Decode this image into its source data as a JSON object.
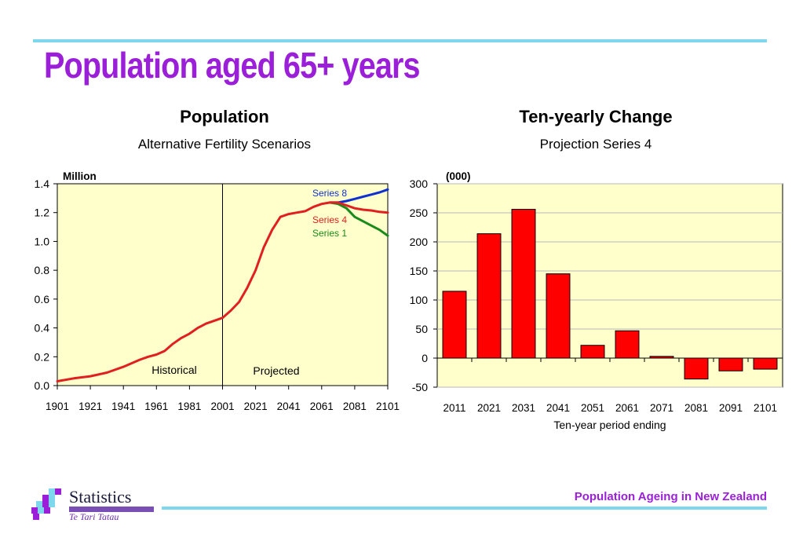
{
  "slide": {
    "title": "Population aged 65+ years",
    "footer": "Population Ageing in New Zealand",
    "logo": {
      "name": "Statistics",
      "maori": "Te Tari Tatau",
      "icon": "stats-nz-logo-icon"
    },
    "colors": {
      "title": "#9b1fd8",
      "rule": "#7fd7ee",
      "plot_bg": "#ffffcc",
      "bar": "#ff0000"
    }
  },
  "chart_data": [
    {
      "type": "line",
      "title": "Population",
      "subtitle": "Alternative Fertility Scenarios",
      "ylabel": "Million",
      "ylim": [
        0,
        1.4
      ],
      "xlim": [
        1901,
        2101
      ],
      "yticks": [
        "0.0",
        "0.2",
        "0.4",
        "0.6",
        "0.8",
        "1.0",
        "1.2",
        "1.4"
      ],
      "xticks": [
        "1901",
        "1921",
        "1941",
        "1961",
        "1981",
        "2001",
        "2021",
        "2041",
        "2061",
        "2081",
        "2101"
      ],
      "annotations": {
        "historical": "Historical",
        "projected": "Projected",
        "divider_year": 2001
      },
      "series": [
        {
          "name": "Series 4",
          "color": "#e02020",
          "x": [
            1901,
            1911,
            1921,
            1931,
            1941,
            1951,
            1956,
            1961,
            1966,
            1971,
            1976,
            1981,
            1986,
            1991,
            1996,
            2001,
            2006,
            2011,
            2016,
            2021,
            2026,
            2031,
            2036,
            2041,
            2046,
            2051,
            2056,
            2061,
            2066,
            2071,
            2076,
            2081,
            2086,
            2091,
            2096,
            2101
          ],
          "values": [
            0.03,
            0.05,
            0.065,
            0.09,
            0.13,
            0.18,
            0.2,
            0.215,
            0.24,
            0.29,
            0.33,
            0.36,
            0.4,
            0.43,
            0.45,
            0.47,
            0.52,
            0.58,
            0.68,
            0.8,
            0.96,
            1.08,
            1.17,
            1.19,
            1.2,
            1.21,
            1.24,
            1.26,
            1.27,
            1.27,
            1.25,
            1.23,
            1.22,
            1.215,
            1.205,
            1.2
          ]
        },
        {
          "name": "Series 8",
          "color": "#1030d0",
          "x": [
            2066,
            2071,
            2076,
            2081,
            2086,
            2091,
            2096,
            2101
          ],
          "values": [
            1.27,
            1.27,
            1.28,
            1.295,
            1.31,
            1.325,
            1.34,
            1.36
          ]
        },
        {
          "name": "Series 1",
          "color": "#1a8a1a",
          "x": [
            2066,
            2071,
            2076,
            2081,
            2086,
            2091,
            2096,
            2101
          ],
          "values": [
            1.27,
            1.26,
            1.23,
            1.17,
            1.14,
            1.11,
            1.08,
            1.04
          ]
        }
      ],
      "legend_labels": [
        "Series 8",
        "Series 4",
        "Series 1"
      ],
      "grid": false
    },
    {
      "type": "bar",
      "title": "Ten-yearly Change",
      "subtitle": "Projection Series 4",
      "ylabel": "(000)",
      "xlabel": "Ten-year period ending",
      "ylim": [
        -50,
        300
      ],
      "yticks": [
        "-50",
        "0",
        "50",
        "100",
        "150",
        "200",
        "250",
        "300"
      ],
      "categories": [
        "2011",
        "2021",
        "2031",
        "2041",
        "2051",
        "2061",
        "2071",
        "2081",
        "2091",
        "2101"
      ],
      "values": [
        115,
        214,
        256,
        145,
        22,
        47,
        3,
        -36,
        -22,
        -19
      ],
      "color": "#ff0000",
      "grid": true
    }
  ]
}
